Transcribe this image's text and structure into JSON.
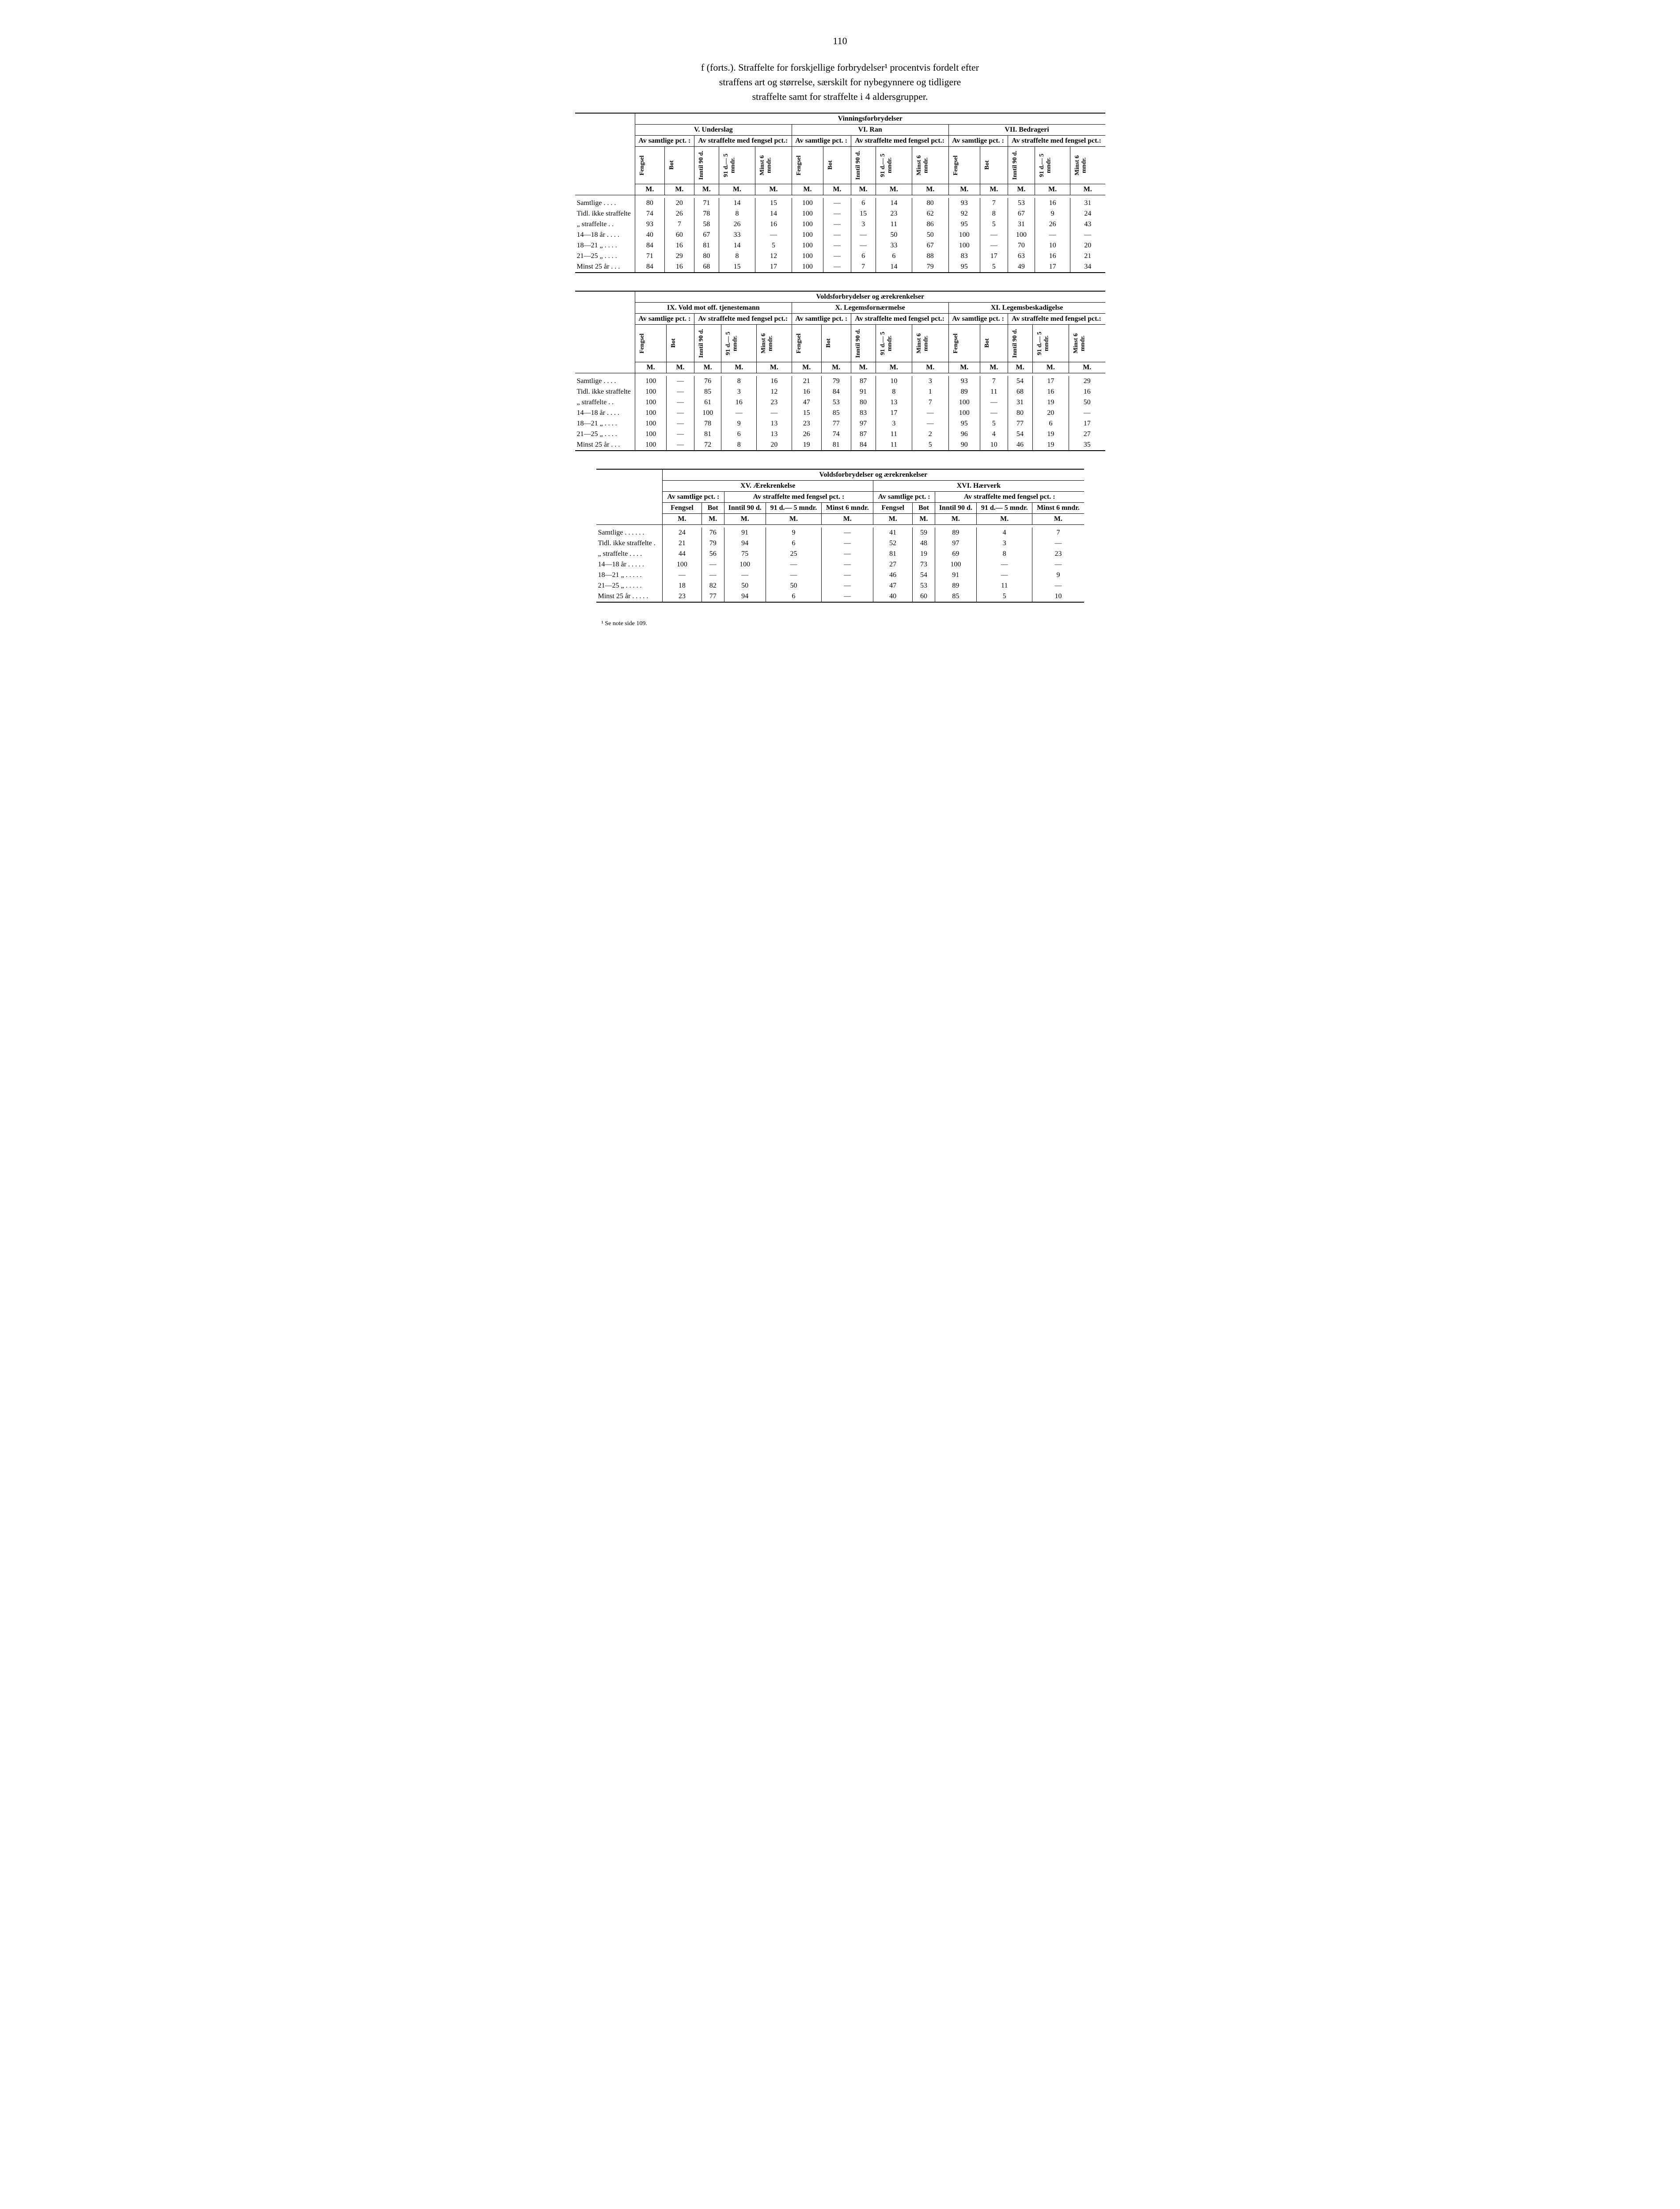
{
  "page_number": "110",
  "title_line1": "f (forts.). Straffelte for forskjellige forbrydelser¹ procentvis fordelt efter",
  "title_line2": "straffens art og størrelse, særskilt for nybegynnere og tidligere",
  "title_line3": "straffelte samt for straffelte i 4 aldersgrupper.",
  "footnote": "¹ Se note side 109.",
  "row_labels": {
    "r0": "Samtlige . . . .",
    "r1": "Tidl. ikke straffelte",
    "r2": "„ straffelte . .",
    "r3": "14—18 år . . . .",
    "r4": "18—21 „ . . . .",
    "r5": "21—25 „ . . . .",
    "r6": "Minst 25 år . . ."
  },
  "row_labels_t3": {
    "r0": "Samtlige . . . . . .",
    "r1": "Tidl. ikke straffelte .",
    "r2": "„ straffelte . . . .",
    "r3": "14—18 år . . . . .",
    "r4": "18—21 „ . . . . .",
    "r5": "21—25 „ . . . . .",
    "r6": "Minst 25 år . . . . ."
  },
  "col_headers": {
    "fengsel": "Fengsel",
    "bot": "Bot",
    "inntil90": "Inntil 90 d.",
    "d91_5m": "91 d.— 5 mndr.",
    "minst6m": "Minst 6 mndr.",
    "av_samtlige": "Av samtlige pct. :",
    "av_straffelte": "Av straffelte med fengsel pct.:",
    "av_straffelte_t3": "Av straffelte med fengsel pct. :",
    "M": "M."
  },
  "table1": {
    "super": "Vinningsforbrydelser",
    "sections": {
      "s1": "V. Underslag",
      "s2": "VI. Ran",
      "s3": "VII. Bedrageri"
    },
    "rows": [
      [
        "80",
        "20",
        "71",
        "14",
        "15",
        "100",
        "—",
        "6",
        "14",
        "80",
        "93",
        "7",
        "53",
        "16",
        "31"
      ],
      [
        "74",
        "26",
        "78",
        "8",
        "14",
        "100",
        "—",
        "15",
        "23",
        "62",
        "92",
        "8",
        "67",
        "9",
        "24"
      ],
      [
        "93",
        "7",
        "58",
        "26",
        "16",
        "100",
        "—",
        "3",
        "11",
        "86",
        "95",
        "5",
        "31",
        "26",
        "43"
      ],
      [
        "40",
        "60",
        "67",
        "33",
        "—",
        "100",
        "—",
        "—",
        "50",
        "50",
        "100",
        "—",
        "100",
        "—",
        "—"
      ],
      [
        "84",
        "16",
        "81",
        "14",
        "5",
        "100",
        "—",
        "—",
        "33",
        "67",
        "100",
        "—",
        "70",
        "10",
        "20"
      ],
      [
        "71",
        "29",
        "80",
        "8",
        "12",
        "100",
        "—",
        "6",
        "6",
        "88",
        "83",
        "17",
        "63",
        "16",
        "21"
      ],
      [
        "84",
        "16",
        "68",
        "15",
        "17",
        "100",
        "—",
        "7",
        "14",
        "79",
        "95",
        "5",
        "49",
        "17",
        "34"
      ]
    ]
  },
  "table2": {
    "super": "Voldsforbrydelser og ærekrenkelser",
    "sections": {
      "s1": "IX. Vold mot off. tjenestemann",
      "s2": "X. Legemsfornærmelse",
      "s3": "XI. Legemsbeskadigelse"
    },
    "rows": [
      [
        "100",
        "—",
        "76",
        "8",
        "16",
        "21",
        "79",
        "87",
        "10",
        "3",
        "93",
        "7",
        "54",
        "17",
        "29"
      ],
      [
        "100",
        "—",
        "85",
        "3",
        "12",
        "16",
        "84",
        "91",
        "8",
        "1",
        "89",
        "11",
        "68",
        "16",
        "16"
      ],
      [
        "100",
        "—",
        "61",
        "16",
        "23",
        "47",
        "53",
        "80",
        "13",
        "7",
        "100",
        "—",
        "31",
        "19",
        "50"
      ],
      [
        "100",
        "—",
        "100",
        "—",
        "—",
        "15",
        "85",
        "83",
        "17",
        "—",
        "100",
        "—",
        "80",
        "20",
        "—"
      ],
      [
        "100",
        "—",
        "78",
        "9",
        "13",
        "23",
        "77",
        "97",
        "3",
        "—",
        "95",
        "5",
        "77",
        "6",
        "17"
      ],
      [
        "100",
        "—",
        "81",
        "6",
        "13",
        "26",
        "74",
        "87",
        "11",
        "2",
        "96",
        "4",
        "54",
        "19",
        "27"
      ],
      [
        "100",
        "—",
        "72",
        "8",
        "20",
        "19",
        "81",
        "84",
        "11",
        "5",
        "90",
        "10",
        "46",
        "19",
        "35"
      ]
    ]
  },
  "table3": {
    "super": "Voldsforbrydelser og ærekrenkelser",
    "sections": {
      "s1": "XV. Ærekrenkelse",
      "s2": "XVI. Hærverk"
    },
    "rows": [
      [
        "24",
        "76",
        "91",
        "9",
        "—",
        "41",
        "59",
        "89",
        "4",
        "7"
      ],
      [
        "21",
        "79",
        "94",
        "6",
        "—",
        "52",
        "48",
        "97",
        "3",
        "—"
      ],
      [
        "44",
        "56",
        "75",
        "25",
        "—",
        "81",
        "19",
        "69",
        "8",
        "23"
      ],
      [
        "100",
        "—",
        "100",
        "—",
        "—",
        "27",
        "73",
        "100",
        "—",
        "—"
      ],
      [
        "—",
        "—",
        "—",
        "—",
        "—",
        "46",
        "54",
        "91",
        "—",
        "9"
      ],
      [
        "18",
        "82",
        "50",
        "50",
        "—",
        "47",
        "53",
        "89",
        "11",
        "—"
      ],
      [
        "23",
        "77",
        "94",
        "6",
        "—",
        "40",
        "60",
        "85",
        "5",
        "10"
      ]
    ]
  }
}
